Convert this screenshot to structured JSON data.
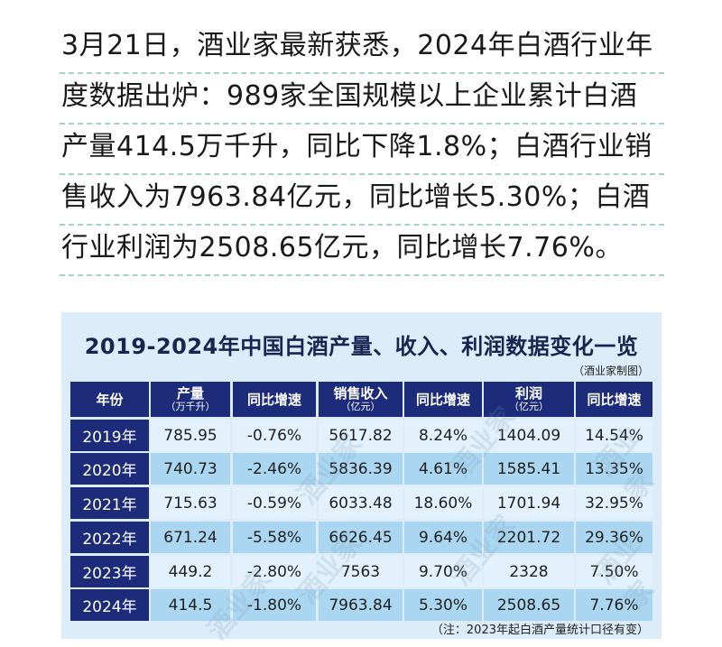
{
  "article": {
    "lines": [
      "3月21日，酒业家最新获悉，2024年白酒行业年",
      "度数据出炉：989家全国规模以上企业累计白酒",
      "产量414.5万千升，同比下降1.8%；白酒行业销",
      "售收入为7963.84亿元，同比增长5.30%；白酒",
      "行业利润为2508.65亿元，同比增长7.76%。"
    ]
  },
  "table": {
    "title": "2019-2024年中国白酒产量、收入、利润数据变化一览",
    "credit": "（酒业家制图）",
    "watermark": "酒业家",
    "headers": [
      {
        "label": "年份",
        "unit": ""
      },
      {
        "label": "产量",
        "unit": "（万千升）"
      },
      {
        "label": "同比增速",
        "unit": ""
      },
      {
        "label": "销售收入",
        "unit": "（亿元）"
      },
      {
        "label": "同比增速",
        "unit": ""
      },
      {
        "label": "利润",
        "unit": "（亿元）"
      },
      {
        "label": "同比增速",
        "unit": ""
      }
    ],
    "rows": [
      {
        "year": "2019年",
        "output": "785.95",
        "output_yoy": "-0.76%",
        "revenue": "5617.82",
        "revenue_yoy": "8.24%",
        "profit": "1404.09",
        "profit_yoy": "14.54%"
      },
      {
        "year": "2020年",
        "output": "740.73",
        "output_yoy": "-2.46%",
        "revenue": "5836.39",
        "revenue_yoy": "4.61%",
        "profit": "1585.41",
        "profit_yoy": "13.35%"
      },
      {
        "year": "2021年",
        "output": "715.63",
        "output_yoy": "-0.59%",
        "revenue": "6033.48",
        "revenue_yoy": "18.60%",
        "profit": "1701.94",
        "profit_yoy": "32.95%"
      },
      {
        "year": "2022年",
        "output": "671.24",
        "output_yoy": "-5.58%",
        "revenue": "6626.45",
        "revenue_yoy": "9.64%",
        "profit": "2201.72",
        "profit_yoy": "29.36%"
      },
      {
        "year": "2023年",
        "output": "449.2",
        "output_yoy": "-2.80%",
        "revenue": "7563",
        "revenue_yoy": "9.70%",
        "profit": "2328",
        "profit_yoy": "7.50%"
      },
      {
        "year": "2024年",
        "output": "414.5",
        "output_yoy": "-1.80%",
        "revenue": "7963.84",
        "revenue_yoy": "5.30%",
        "profit": "2508.65",
        "profit_yoy": "7.76%"
      }
    ],
    "note": "（注：2023年起白酒产量统计口径有变）"
  },
  "colors": {
    "header_bg": "#1d2c7a",
    "row_light": "#e2f1fb",
    "row_dark": "#aad6f1",
    "panel_bg": "#dcecf9",
    "dash_underline": "#a3d3c4"
  }
}
